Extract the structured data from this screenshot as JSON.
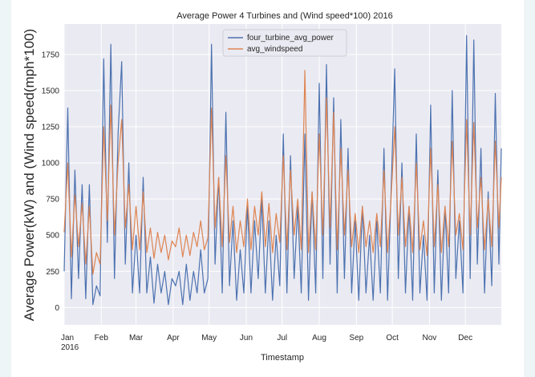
{
  "chart_data": {
    "type": "line",
    "title": "Average Power 4 Turbines and (Wind speed*100) 2016",
    "xlabel": "Timestamp",
    "ylabel": "Average Power(kW) and (Wind speed(mph*100)",
    "x_range": [
      "2016-01-01",
      "2016-12-31"
    ],
    "ylim": [
      -120,
      1960
    ],
    "y_ticks": [
      0,
      250,
      500,
      750,
      1000,
      1250,
      1500,
      1750
    ],
    "x_ticks": [
      {
        "date": "2016-01-01",
        "label": "Jan",
        "sublabel": "2016"
      },
      {
        "date": "2016-02-01",
        "label": "Feb"
      },
      {
        "date": "2016-03-01",
        "label": "Mar"
      },
      {
        "date": "2016-04-01",
        "label": "Apr"
      },
      {
        "date": "2016-05-01",
        "label": "May"
      },
      {
        "date": "2016-06-01",
        "label": "Jun"
      },
      {
        "date": "2016-07-01",
        "label": "Jul"
      },
      {
        "date": "2016-08-01",
        "label": "Aug"
      },
      {
        "date": "2016-09-01",
        "label": "Sep"
      },
      {
        "date": "2016-10-01",
        "label": "Oct"
      },
      {
        "date": "2016-11-01",
        "label": "Nov"
      },
      {
        "date": "2016-12-01",
        "label": "Dec"
      }
    ],
    "grid": true,
    "legend_position": "top-center",
    "series": [
      {
        "name": "four_turbine_avg_power",
        "color": "#4c72b0",
        "points": [
          [
            "2016-01-01",
            250
          ],
          [
            "2016-01-04",
            1380
          ],
          [
            "2016-01-07",
            60
          ],
          [
            "2016-01-10",
            950
          ],
          [
            "2016-01-13",
            200
          ],
          [
            "2016-01-16",
            850
          ],
          [
            "2016-01-19",
            60
          ],
          [
            "2016-01-22",
            850
          ],
          [
            "2016-01-25",
            20
          ],
          [
            "2016-01-28",
            150
          ],
          [
            "2016-01-31",
            80
          ],
          [
            "2016-02-03",
            1720
          ],
          [
            "2016-02-06",
            450
          ],
          [
            "2016-02-09",
            1820
          ],
          [
            "2016-02-12",
            200
          ],
          [
            "2016-02-15",
            1200
          ],
          [
            "2016-02-18",
            1700
          ],
          [
            "2016-02-21",
            300
          ],
          [
            "2016-02-24",
            1000
          ],
          [
            "2016-02-27",
            100
          ],
          [
            "2016-03-01",
            500
          ],
          [
            "2016-03-04",
            100
          ],
          [
            "2016-03-07",
            900
          ],
          [
            "2016-03-10",
            100
          ],
          [
            "2016-03-13",
            350
          ],
          [
            "2016-03-16",
            30
          ],
          [
            "2016-03-19",
            300
          ],
          [
            "2016-03-22",
            100
          ],
          [
            "2016-03-25",
            250
          ],
          [
            "2016-03-28",
            20
          ],
          [
            "2016-03-31",
            200
          ],
          [
            "2016-04-03",
            150
          ],
          [
            "2016-04-06",
            250
          ],
          [
            "2016-04-09",
            20
          ],
          [
            "2016-04-12",
            300
          ],
          [
            "2016-04-15",
            50
          ],
          [
            "2016-04-18",
            250
          ],
          [
            "2016-04-21",
            100
          ],
          [
            "2016-04-24",
            400
          ],
          [
            "2016-04-27",
            100
          ],
          [
            "2016-04-30",
            200
          ],
          [
            "2016-05-03",
            1820
          ],
          [
            "2016-05-06",
            300
          ],
          [
            "2016-05-09",
            900
          ],
          [
            "2016-05-12",
            100
          ],
          [
            "2016-05-15",
            1350
          ],
          [
            "2016-05-18",
            150
          ],
          [
            "2016-05-21",
            600
          ],
          [
            "2016-05-24",
            50
          ],
          [
            "2016-05-27",
            400
          ],
          [
            "2016-05-30",
            100
          ],
          [
            "2016-06-02",
            700
          ],
          [
            "2016-06-05",
            100
          ],
          [
            "2016-06-08",
            600
          ],
          [
            "2016-06-11",
            200
          ],
          [
            "2016-06-14",
            750
          ],
          [
            "2016-06-17",
            100
          ],
          [
            "2016-06-20",
            600
          ],
          [
            "2016-06-23",
            50
          ],
          [
            "2016-06-26",
            500
          ],
          [
            "2016-06-29",
            150
          ],
          [
            "2016-07-02",
            1200
          ],
          [
            "2016-07-05",
            100
          ],
          [
            "2016-07-08",
            1050
          ],
          [
            "2016-07-11",
            200
          ],
          [
            "2016-07-14",
            700
          ],
          [
            "2016-07-17",
            100
          ],
          [
            "2016-07-20",
            1200
          ],
          [
            "2016-07-23",
            50
          ],
          [
            "2016-07-26",
            800
          ],
          [
            "2016-07-29",
            100
          ],
          [
            "2016-08-01",
            1550
          ],
          [
            "2016-08-04",
            200
          ],
          [
            "2016-08-07",
            1680
          ],
          [
            "2016-08-10",
            300
          ],
          [
            "2016-08-13",
            1450
          ],
          [
            "2016-08-16",
            100
          ],
          [
            "2016-08-19",
            1300
          ],
          [
            "2016-08-22",
            200
          ],
          [
            "2016-08-25",
            1100
          ],
          [
            "2016-08-28",
            100
          ],
          [
            "2016-08-31",
            600
          ],
          [
            "2016-09-03",
            50
          ],
          [
            "2016-09-06",
            700
          ],
          [
            "2016-09-09",
            100
          ],
          [
            "2016-09-12",
            500
          ],
          [
            "2016-09-15",
            50
          ],
          [
            "2016-09-18",
            600
          ],
          [
            "2016-09-21",
            100
          ],
          [
            "2016-09-24",
            1100
          ],
          [
            "2016-09-27",
            50
          ],
          [
            "2016-09-30",
            800
          ],
          [
            "2016-10-03",
            1650
          ],
          [
            "2016-10-06",
            200
          ],
          [
            "2016-10-09",
            1000
          ],
          [
            "2016-10-12",
            100
          ],
          [
            "2016-10-15",
            700
          ],
          [
            "2016-10-18",
            50
          ],
          [
            "2016-10-21",
            1200
          ],
          [
            "2016-10-24",
            100
          ],
          [
            "2016-10-27",
            500
          ],
          [
            "2016-10-30",
            50
          ],
          [
            "2016-11-02",
            1400
          ],
          [
            "2016-11-05",
            100
          ],
          [
            "2016-11-08",
            950
          ],
          [
            "2016-11-11",
            50
          ],
          [
            "2016-11-14",
            700
          ],
          [
            "2016-11-17",
            100
          ],
          [
            "2016-11-20",
            1500
          ],
          [
            "2016-11-23",
            200
          ],
          [
            "2016-11-26",
            600
          ],
          [
            "2016-11-29",
            100
          ],
          [
            "2016-12-02",
            1880
          ],
          [
            "2016-12-05",
            200
          ],
          [
            "2016-12-08",
            1850
          ],
          [
            "2016-12-11",
            300
          ],
          [
            "2016-12-14",
            1100
          ],
          [
            "2016-12-17",
            100
          ],
          [
            "2016-12-20",
            800
          ],
          [
            "2016-12-23",
            150
          ],
          [
            "2016-12-26",
            1480
          ],
          [
            "2016-12-29",
            300
          ],
          [
            "2016-12-31",
            1100
          ]
        ]
      },
      {
        "name": "avg_windspeed",
        "color": "#dd8452",
        "points": [
          [
            "2016-01-01",
            520
          ],
          [
            "2016-01-04",
            1000
          ],
          [
            "2016-01-07",
            350
          ],
          [
            "2016-01-10",
            780
          ],
          [
            "2016-01-13",
            420
          ],
          [
            "2016-01-16",
            720
          ],
          [
            "2016-01-19",
            300
          ],
          [
            "2016-01-22",
            700
          ],
          [
            "2016-01-25",
            230
          ],
          [
            "2016-01-28",
            380
          ],
          [
            "2016-01-31",
            300
          ],
          [
            "2016-02-03",
            1250
          ],
          [
            "2016-02-06",
            600
          ],
          [
            "2016-02-09",
            1400
          ],
          [
            "2016-02-12",
            500
          ],
          [
            "2016-02-15",
            1000
          ],
          [
            "2016-02-18",
            1300
          ],
          [
            "2016-02-21",
            550
          ],
          [
            "2016-02-24",
            850
          ],
          [
            "2016-02-27",
            400
          ],
          [
            "2016-03-01",
            700
          ],
          [
            "2016-03-04",
            400
          ],
          [
            "2016-03-07",
            800
          ],
          [
            "2016-03-10",
            380
          ],
          [
            "2016-03-13",
            550
          ],
          [
            "2016-03-16",
            340
          ],
          [
            "2016-03-19",
            520
          ],
          [
            "2016-03-22",
            380
          ],
          [
            "2016-03-25",
            500
          ],
          [
            "2016-03-28",
            330
          ],
          [
            "2016-03-31",
            460
          ],
          [
            "2016-04-03",
            420
          ],
          [
            "2016-04-06",
            550
          ],
          [
            "2016-04-09",
            350
          ],
          [
            "2016-04-12",
            500
          ],
          [
            "2016-04-15",
            360
          ],
          [
            "2016-04-18",
            520
          ],
          [
            "2016-04-21",
            420
          ],
          [
            "2016-04-24",
            600
          ],
          [
            "2016-04-27",
            400
          ],
          [
            "2016-04-30",
            480
          ],
          [
            "2016-05-03",
            1380
          ],
          [
            "2016-05-06",
            550
          ],
          [
            "2016-05-09",
            900
          ],
          [
            "2016-05-12",
            420
          ],
          [
            "2016-05-15",
            1050
          ],
          [
            "2016-05-18",
            450
          ],
          [
            "2016-05-21",
            700
          ],
          [
            "2016-05-24",
            380
          ],
          [
            "2016-05-27",
            600
          ],
          [
            "2016-05-30",
            420
          ],
          [
            "2016-06-02",
            750
          ],
          [
            "2016-06-05",
            400
          ],
          [
            "2016-06-08",
            700
          ],
          [
            "2016-06-11",
            500
          ],
          [
            "2016-06-14",
            800
          ],
          [
            "2016-06-17",
            420
          ],
          [
            "2016-06-20",
            720
          ],
          [
            "2016-06-23",
            380
          ],
          [
            "2016-06-26",
            650
          ],
          [
            "2016-06-29",
            450
          ],
          [
            "2016-07-02",
            1050
          ],
          [
            "2016-07-05",
            400
          ],
          [
            "2016-07-08",
            950
          ],
          [
            "2016-07-11",
            500
          ],
          [
            "2016-07-14",
            750
          ],
          [
            "2016-07-17",
            400
          ],
          [
            "2016-07-20",
            1640
          ],
          [
            "2016-07-23",
            380
          ],
          [
            "2016-07-26",
            800
          ],
          [
            "2016-07-29",
            400
          ],
          [
            "2016-08-01",
            1200
          ],
          [
            "2016-08-04",
            500
          ],
          [
            "2016-08-07",
            1450
          ],
          [
            "2016-08-10",
            550
          ],
          [
            "2016-08-13",
            1350
          ],
          [
            "2016-08-16",
            400
          ],
          [
            "2016-08-19",
            1100
          ],
          [
            "2016-08-22",
            500
          ],
          [
            "2016-08-25",
            950
          ],
          [
            "2016-08-28",
            420
          ],
          [
            "2016-08-31",
            650
          ],
          [
            "2016-09-03",
            380
          ],
          [
            "2016-09-06",
            700
          ],
          [
            "2016-09-09",
            420
          ],
          [
            "2016-09-12",
            600
          ],
          [
            "2016-09-15",
            380
          ],
          [
            "2016-09-18",
            650
          ],
          [
            "2016-09-21",
            420
          ],
          [
            "2016-09-24",
            950
          ],
          [
            "2016-09-27",
            380
          ],
          [
            "2016-09-30",
            750
          ],
          [
            "2016-10-03",
            1250
          ],
          [
            "2016-10-06",
            500
          ],
          [
            "2016-10-09",
            900
          ],
          [
            "2016-10-12",
            420
          ],
          [
            "2016-10-15",
            700
          ],
          [
            "2016-10-18",
            380
          ],
          [
            "2016-10-21",
            1000
          ],
          [
            "2016-10-24",
            400
          ],
          [
            "2016-10-27",
            600
          ],
          [
            "2016-10-30",
            360
          ],
          [
            "2016-11-02",
            1100
          ],
          [
            "2016-11-05",
            420
          ],
          [
            "2016-11-08",
            850
          ],
          [
            "2016-11-11",
            380
          ],
          [
            "2016-11-14",
            700
          ],
          [
            "2016-11-17",
            420
          ],
          [
            "2016-11-20",
            1150
          ],
          [
            "2016-11-23",
            500
          ],
          [
            "2016-11-26",
            650
          ],
          [
            "2016-11-29",
            400
          ],
          [
            "2016-12-02",
            1300
          ],
          [
            "2016-12-05",
            500
          ],
          [
            "2016-12-08",
            1280
          ],
          [
            "2016-12-11",
            550
          ],
          [
            "2016-12-14",
            900
          ],
          [
            "2016-12-17",
            400
          ],
          [
            "2016-12-20",
            750
          ],
          [
            "2016-12-23",
            420
          ],
          [
            "2016-12-26",
            1150
          ],
          [
            "2016-12-29",
            550
          ],
          [
            "2016-12-31",
            900
          ]
        ]
      }
    ]
  }
}
